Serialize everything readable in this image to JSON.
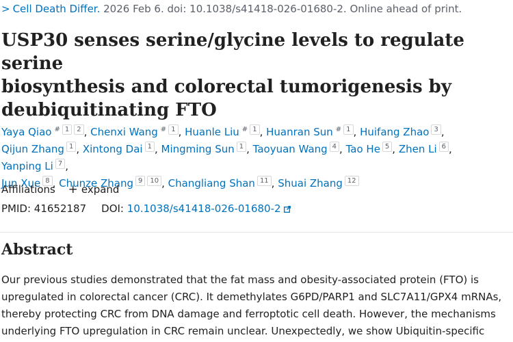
{
  "citation": {
    "journal": "Cell Death Differ.",
    "rest": " 2026 Feb 6. doi: 10.1038/s41418-026-01680-2. Online ahead of print."
  },
  "title_lines": [
    "USP30 senses serine/glycine levels to regulate serine",
    "biosynthesis and colorectal tumorigenesis by",
    "deubiquitinating FTO"
  ],
  "authors": [
    {
      "name": "Yaya Qiao",
      "eq": "#",
      "affs": [
        "1",
        "2"
      ]
    },
    {
      "name": "Chenxi Wang",
      "eq": "#",
      "affs": [
        "1"
      ]
    },
    {
      "name": "Huanle Liu",
      "eq": "#",
      "affs": [
        "1"
      ]
    },
    {
      "name": "Huanran Sun",
      "eq": "#",
      "affs": [
        "1"
      ]
    },
    {
      "name": "Huifang Zhao",
      "eq": "",
      "affs": [
        "3"
      ]
    },
    {
      "name": "Qijun Zhang",
      "eq": "",
      "affs": [
        "1"
      ]
    },
    {
      "name": "Xintong Dai",
      "eq": "",
      "affs": [
        "1"
      ]
    },
    {
      "name": "Mingming Sun",
      "eq": "",
      "affs": [
        "1"
      ]
    },
    {
      "name": "Taoyuan Wang",
      "eq": "",
      "affs": [
        "4"
      ]
    },
    {
      "name": "Tao He",
      "eq": "",
      "affs": [
        "5"
      ]
    },
    {
      "name": "Zhen Li",
      "eq": "",
      "affs": [
        "6"
      ]
    },
    {
      "name": "Yanping Li",
      "eq": "",
      "affs": [
        "7"
      ]
    },
    {
      "name": "Jun Xue",
      "eq": "",
      "affs": [
        "8"
      ]
    },
    {
      "name": "Chunze Zhang",
      "eq": "",
      "affs": [
        "9",
        "10"
      ]
    },
    {
      "name": "Changliang Shan",
      "eq": "",
      "affs": [
        "11"
      ]
    },
    {
      "name": "Shuai Zhang",
      "eq": "",
      "affs": [
        "12"
      ]
    }
  ],
  "author_line_breaks": [
    5,
    12
  ],
  "affiliations": {
    "label": "Affiliations",
    "expand_label": "expand"
  },
  "ids": {
    "pmid_label": "PMID:",
    "pmid": "41652187",
    "doi_label": "DOI:",
    "doi": "10.1038/s41418-026-01680-2"
  },
  "abstract": {
    "heading": "Abstract",
    "lines": [
      "Our previous studies demonstrated that the fat mass and obesity-associated protein (FTO) is",
      "upregulated in colorectal cancer (CRC). It demethylates G6PD/PARP1 and SLC7A11/GPX4 mRNAs,",
      "thereby protecting CRC from DNA damage and ferroptotic cell death. However, the mechanisms",
      "underlying FTO upregulation in CRC remain unclear. Unexpectedly, we show Ubiquitin-specific"
    ]
  },
  "icons": {
    "chevron": "chevron-right-icon",
    "external": "external-link-icon",
    "expand": "plus-icon"
  },
  "colors": {
    "link": "#0071bc",
    "text": "#212121",
    "muted": "#5b616b"
  }
}
